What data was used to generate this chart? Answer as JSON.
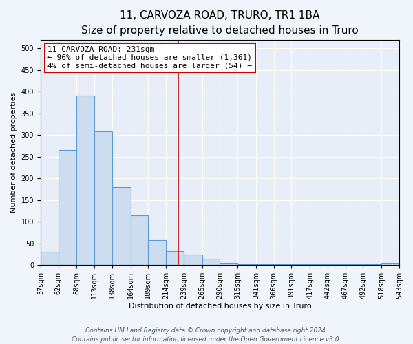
{
  "title": "11, CARVOZA ROAD, TRURO, TR1 1BA",
  "subtitle": "Size of property relative to detached houses in Truro",
  "xlabel": "Distribution of detached houses by size in Truro",
  "ylabel": "Number of detached properties",
  "bin_edges": [
    37,
    62,
    88,
    113,
    138,
    164,
    189,
    214,
    239,
    265,
    290,
    315,
    341,
    366,
    391,
    417,
    442,
    467,
    492,
    518,
    543
  ],
  "hist_values": [
    30,
    265,
    390,
    308,
    180,
    115,
    58,
    32,
    25,
    15,
    5,
    2,
    2,
    2,
    2,
    2,
    2,
    2,
    2,
    5
  ],
  "bar_color": "#ccddf0",
  "bar_edge_color": "#5b9bd5",
  "bar_linewidth": 0.8,
  "vline_x": 231,
  "vline_color": "#cc0000",
  "vline_linewidth": 1.2,
  "annotation_line1": "11 CARVOZA ROAD: 231sqm",
  "annotation_line2": "← 96% of detached houses are smaller (1,361)",
  "annotation_line3": "4% of semi-detached houses are larger (54) →",
  "annotation_box_color": "#ffffff",
  "annotation_box_edge": "#cc0000",
  "ylim": [
    0,
    520
  ],
  "yticks": [
    0,
    50,
    100,
    150,
    200,
    250,
    300,
    350,
    400,
    450,
    500
  ],
  "tick_labels": [
    "37sqm",
    "62sqm",
    "88sqm",
    "113sqm",
    "138sqm",
    "164sqm",
    "189sqm",
    "214sqm",
    "239sqm",
    "265sqm",
    "290sqm",
    "315sqm",
    "341sqm",
    "366sqm",
    "391sqm",
    "417sqm",
    "442sqm",
    "467sqm",
    "492sqm",
    "518sqm",
    "543sqm"
  ],
  "footer_line1": "Contains HM Land Registry data © Crown copyright and database right 2024.",
  "footer_line2": "Contains public sector information licensed under the Open Government Licence v3.0.",
  "title_fontsize": 11,
  "subtitle_fontsize": 9.5,
  "axis_label_fontsize": 8,
  "tick_fontsize": 7,
  "annotation_fontsize": 8,
  "footer_fontsize": 6.5,
  "fig_bg_color": "#f0f4fb",
  "plot_bg_color": "#e8eef8"
}
